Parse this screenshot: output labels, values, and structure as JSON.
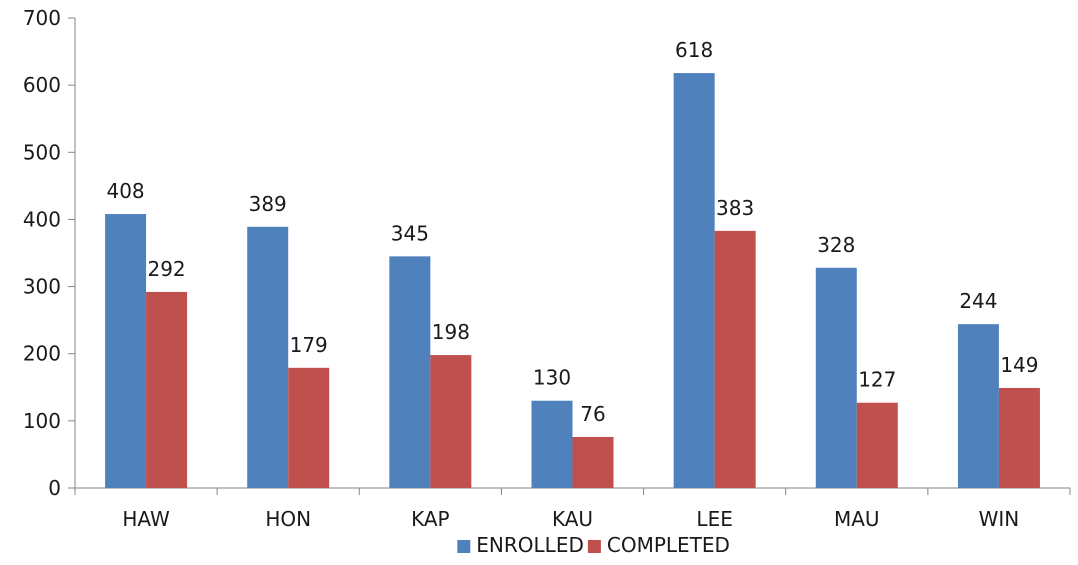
{
  "chart_data": {
    "type": "bar",
    "categories": [
      "HAW",
      "HON",
      "KAP",
      "KAU",
      "LEE",
      "MAU",
      "WIN"
    ],
    "series": [
      {
        "name": "ENROLLED",
        "color": "#4f81bd",
        "values": [
          408,
          389,
          345,
          130,
          618,
          328,
          244
        ]
      },
      {
        "name": "COMPLETED",
        "color": "#c0504d",
        "values": [
          292,
          179,
          198,
          76,
          383,
          127,
          149
        ]
      }
    ],
    "ylim": [
      0,
      700
    ],
    "yticks": [
      0,
      100,
      200,
      300,
      400,
      500,
      600,
      700
    ],
    "grid": false,
    "legend": "bottom",
    "title": "",
    "xlabel": "",
    "ylabel": ""
  }
}
